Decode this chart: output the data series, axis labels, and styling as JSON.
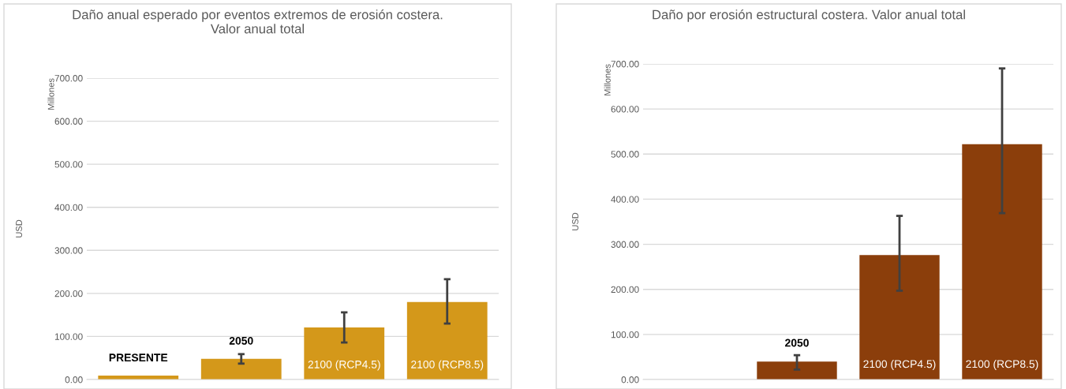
{
  "chart_data": [
    {
      "type": "bar",
      "title": "Daño anual esperado por eventos extremos de erosión costera.\nValor anual total",
      "ylabel": "USD",
      "annotations": [
        "Millones"
      ],
      "categories": [
        "PRESENTE",
        "2050",
        "2100 (RCP4.5)",
        "2100 (RCP8.5)"
      ],
      "values": [
        9,
        48,
        121,
        180
      ],
      "color": "#d4981a",
      "errors": [
        null,
        [
          37,
          59
        ],
        [
          86,
          156
        ],
        [
          130,
          233
        ]
      ],
      "ylim": [
        0,
        700
      ],
      "yticks": [
        {
          "value": 0,
          "label": "0.00"
        },
        {
          "value": 100,
          "label": "100.00"
        },
        {
          "value": 200,
          "label": "200.00"
        },
        {
          "value": 300,
          "label": "300.00"
        },
        {
          "value": 400,
          "label": "400.00"
        },
        {
          "value": 500,
          "label": "500.00"
        },
        {
          "value": 600,
          "label": "600.00"
        },
        {
          "value": 700,
          "label": "700.00"
        }
      ],
      "grid": "y",
      "tick_labels": "y"
    },
    {
      "type": "bar",
      "title": "Daño por erosión estructural costera. Valor anual total",
      "ylabel": "USD",
      "annotations": [
        "Millones"
      ],
      "categories": [
        null,
        "2050",
        "2100 (RCP4.5)",
        "2100 (RCP8.5)"
      ],
      "values": [
        null,
        40,
        276,
        522
      ],
      "color": "#8b3e0b",
      "errors": [
        null,
        [
          22,
          54
        ],
        [
          197,
          363
        ],
        [
          369,
          690
        ]
      ],
      "ylim": [
        0,
        700
      ],
      "yticks": [
        {
          "value": 0,
          "label": "0.00"
        },
        {
          "value": 100,
          "label": "100.00"
        },
        {
          "value": 200,
          "label": "200.00"
        },
        {
          "value": 300,
          "label": "300.00"
        },
        {
          "value": 400,
          "label": "400.00"
        },
        {
          "value": 500,
          "label": "500.00"
        },
        {
          "value": 600,
          "label": "600.00"
        },
        {
          "value": 700,
          "label": "700.00"
        }
      ],
      "grid": "y",
      "tick_labels": "y"
    }
  ]
}
